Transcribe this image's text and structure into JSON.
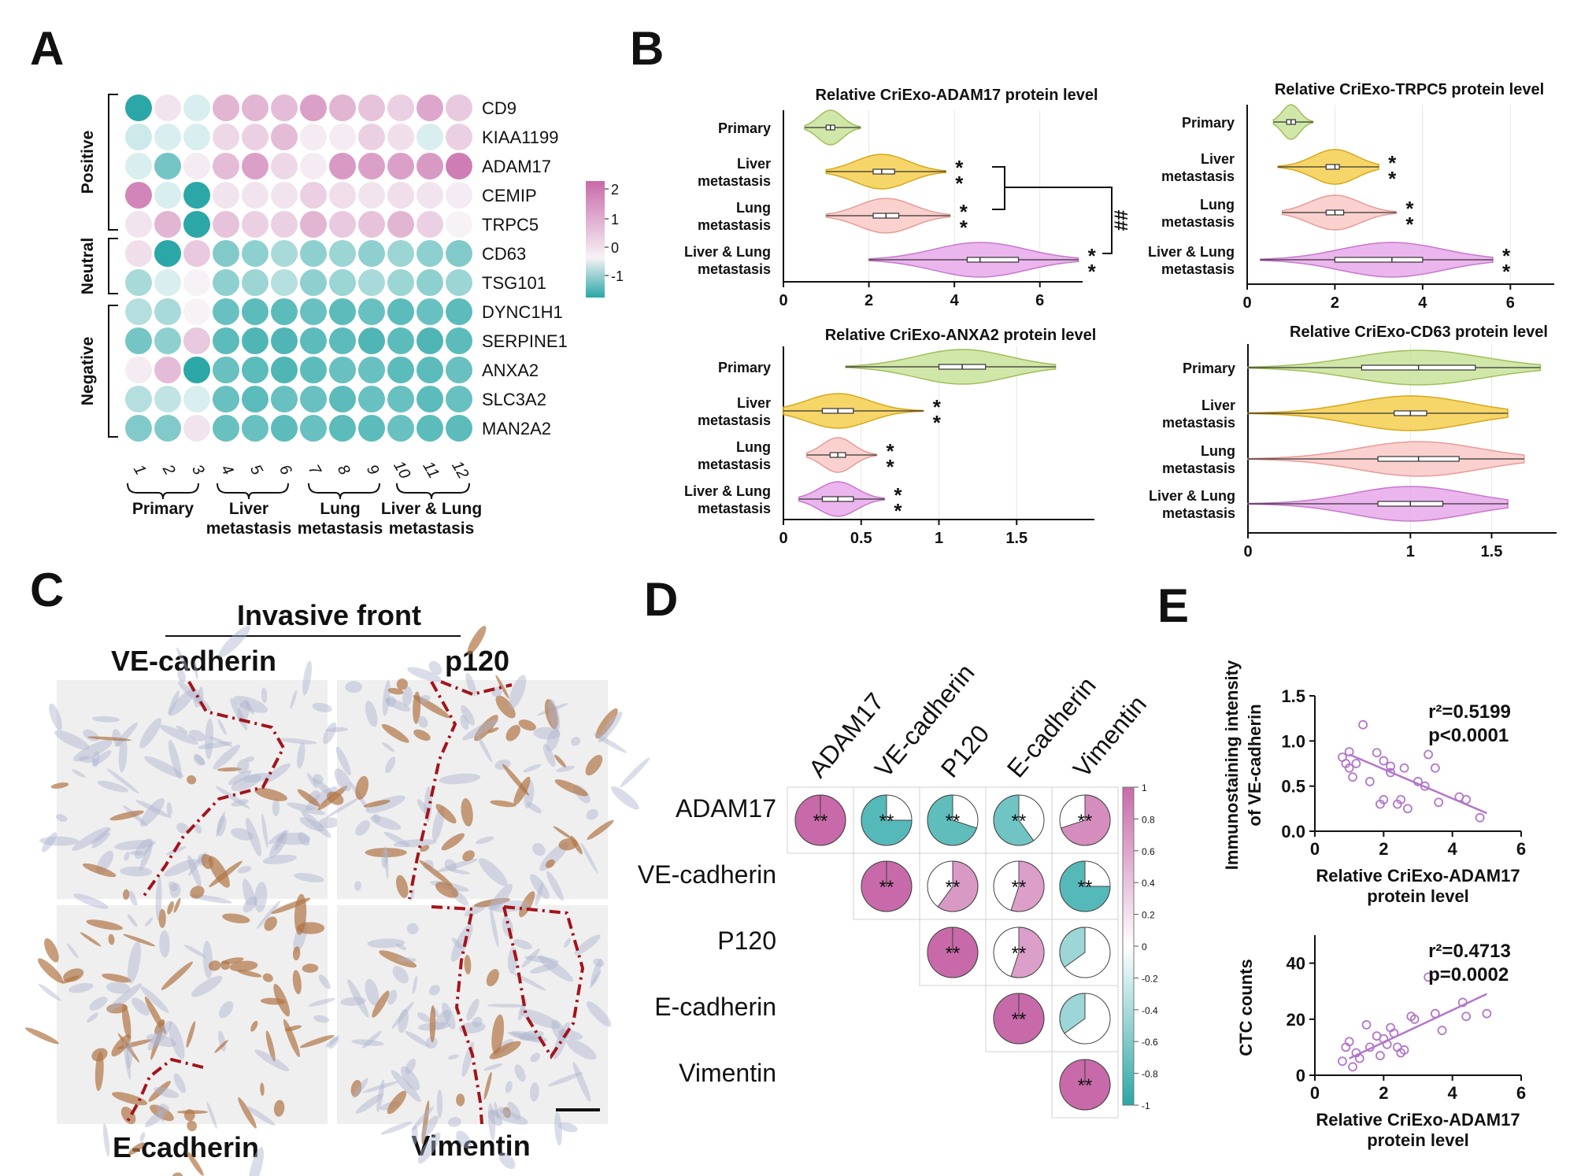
{
  "panels": {
    "a": "A",
    "b": "B",
    "c": "C",
    "d": "D",
    "e": "E"
  },
  "colors": {
    "pos": "#c86aa9",
    "neg": "#2aa7a6",
    "violin_primary": "#c9e39a",
    "violin_liver": "#f5cf4f",
    "violin_lung": "#f9c9c6",
    "violin_both": "#e8a8ea",
    "scatter": "#b377c9",
    "ihc_bg": "#efefef",
    "ihc_brown": "#b07546",
    "ihc_blue": "#aeb3cf",
    "boundary": "#a3141b"
  },
  "heatmap": {
    "genes": [
      "CD9",
      "KIAA1199",
      "ADAM17",
      "CEMIP",
      "TRPC5",
      "CD63",
      "TSG101",
      "DYNC1H1",
      "SERPINE1",
      "ANXA2",
      "SLC3A2",
      "MAN2A2"
    ],
    "samples": [
      "1",
      "2",
      "3",
      "4",
      "5",
      "6",
      "7",
      "8",
      "9",
      "10",
      "11",
      "12"
    ],
    "groups": [
      {
        "label": "Primary",
        "line2": ""
      },
      {
        "label": "Liver",
        "line2": "metastasis"
      },
      {
        "label": "Lung",
        "line2": "metastasis"
      },
      {
        "label": "Liver & Lung",
        "line2": "metastasis"
      }
    ],
    "row_groups": [
      "Positive",
      "Neutral",
      "Negative"
    ],
    "legend_ticks": [
      "2",
      "1",
      "0",
      "-1"
    ],
    "values": [
      [
        -2.0,
        0.2,
        -0.2,
        0.9,
        0.9,
        0.8,
        1.2,
        0.9,
        0.7,
        0.5,
        1.1,
        0.6
      ],
      [
        -0.3,
        -0.2,
        -0.2,
        0.4,
        0.5,
        0.8,
        0.1,
        0.1,
        0.5,
        0.3,
        -0.2,
        0.5
      ],
      [
        -0.2,
        -1.0,
        0.1,
        0.8,
        1.2,
        0.4,
        0.1,
        1.3,
        1.2,
        1.2,
        1.3,
        1.7
      ],
      [
        1.6,
        -0.2,
        -1.6,
        0.2,
        0.2,
        0.2,
        0.5,
        0.3,
        0.2,
        0.3,
        0.2,
        0.1
      ],
      [
        0.2,
        0.9,
        -1.8,
        0.7,
        0.5,
        0.5,
        0.9,
        0.6,
        0.7,
        0.9,
        0.5,
        0.0
      ],
      [
        0.3,
        -2.0,
        0.6,
        -0.9,
        -0.8,
        -0.6,
        -0.8,
        -0.7,
        -0.8,
        -0.7,
        -0.8,
        -0.9
      ],
      [
        -0.6,
        -0.2,
        0.0,
        -0.8,
        -0.7,
        -0.5,
        -0.8,
        -0.7,
        -0.6,
        -0.7,
        -0.8,
        -0.7
      ],
      [
        -0.5,
        -0.6,
        0.0,
        -1.1,
        -1.2,
        -1.2,
        -1.1,
        -1.2,
        -1.1,
        -1.2,
        -1.1,
        -1.2
      ],
      [
        -1.0,
        -0.8,
        0.6,
        -1.2,
        -1.3,
        -1.3,
        -1.2,
        -1.2,
        -1.3,
        -1.2,
        -1.3,
        -1.2
      ],
      [
        0.1,
        0.8,
        -1.9,
        -1.1,
        -1.2,
        -1.3,
        -1.2,
        -1.1,
        -1.1,
        -1.2,
        -1.2,
        -1.1
      ],
      [
        -0.5,
        -0.4,
        -0.2,
        -1.1,
        -1.2,
        -1.1,
        -1.1,
        -1.2,
        -1.1,
        -1.1,
        -1.2,
        -1.1
      ],
      [
        -0.9,
        -0.9,
        0.2,
        -1.1,
        -1.1,
        -1.2,
        -1.1,
        -1.2,
        -1.2,
        -1.1,
        -1.2,
        -1.2
      ]
    ]
  },
  "violins": [
    {
      "title": "Relative CriExo-ADAM17 protein level",
      "categories": [
        "Primary",
        "Liver\nmetastasis",
        "Lung\nmetastasis",
        "Liver & Lung\nmetastasis"
      ],
      "xlim": [
        0,
        7
      ],
      "xticks": [
        "0",
        "2",
        "4",
        "6"
      ],
      "groups": [
        {
          "min": 0.5,
          "q1": 1.0,
          "median": 1.1,
          "q3": 1.2,
          "max": 1.8,
          "sig": ""
        },
        {
          "min": 1.0,
          "q1": 2.1,
          "median": 2.3,
          "q3": 2.6,
          "max": 3.8,
          "sig": "**"
        },
        {
          "min": 1.0,
          "q1": 2.1,
          "median": 2.4,
          "q3": 2.7,
          "max": 3.9,
          "sig": "**"
        },
        {
          "min": 2.0,
          "q1": 4.3,
          "median": 4.6,
          "q3": 5.5,
          "max": 6.9,
          "sig": "**"
        }
      ],
      "bracket_label": "##"
    },
    {
      "title": "Relative CriExo-TRPC5 protein level",
      "categories": [
        "Primary",
        "Liver\nmetastasis",
        "Lung\nmetastasis",
        "Liver & Lung\nmetastasis"
      ],
      "xlim": [
        0,
        7
      ],
      "xticks": [
        "0",
        "2",
        "4",
        "6"
      ],
      "groups": [
        {
          "min": 0.6,
          "q1": 0.9,
          "median": 1.0,
          "q3": 1.1,
          "max": 1.5,
          "sig": ""
        },
        {
          "min": 0.7,
          "q1": 1.8,
          "median": 2.0,
          "q3": 2.1,
          "max": 3.0,
          "sig": "**"
        },
        {
          "min": 0.8,
          "q1": 1.8,
          "median": 2.0,
          "q3": 2.2,
          "max": 3.4,
          "sig": "**"
        },
        {
          "min": 0.3,
          "q1": 2.0,
          "median": 3.3,
          "q3": 4.0,
          "max": 5.6,
          "sig": "**"
        }
      ]
    },
    {
      "title": "Relative CriExo-ANXA2 protein level",
      "categories": [
        "Primary",
        "Liver\nmetastasis",
        "Lung\nmetastasis",
        "Liver & Lung\nmetastasis"
      ],
      "xlim": [
        0,
        2.0
      ],
      "xticks": [
        "0",
        "0.5",
        "1",
        "1.5"
      ],
      "groups": [
        {
          "min": 0.4,
          "q1": 1.0,
          "median": 1.15,
          "q3": 1.3,
          "max": 1.75,
          "sig": ""
        },
        {
          "min": 0.0,
          "q1": 0.25,
          "median": 0.35,
          "q3": 0.45,
          "max": 0.9,
          "sig": "**"
        },
        {
          "min": 0.15,
          "q1": 0.3,
          "median": 0.35,
          "q3": 0.4,
          "max": 0.6,
          "sig": "**"
        },
        {
          "min": 0.1,
          "q1": 0.25,
          "median": 0.35,
          "q3": 0.45,
          "max": 0.65,
          "sig": "**"
        }
      ]
    },
    {
      "title": "Relative CriExo-CD63 protein level",
      "categories": [
        "Primary",
        "Liver\nmetastasis",
        "Lung\nmetastasis",
        "Liver & Lung\nmetastasis"
      ],
      "xlim": [
        0,
        1.9
      ],
      "xticks": [
        "0",
        "1",
        "1.5"
      ],
      "tick_values": [
        0,
        1,
        1.5
      ],
      "groups": [
        {
          "min": 0.0,
          "q1": 0.7,
          "median": 1.05,
          "q3": 1.4,
          "max": 1.8,
          "sig": ""
        },
        {
          "min": 0.0,
          "q1": 0.9,
          "median": 1.0,
          "q3": 1.1,
          "max": 1.6,
          "sig": ""
        },
        {
          "min": 0.0,
          "q1": 0.8,
          "median": 1.05,
          "q3": 1.3,
          "max": 1.7,
          "sig": ""
        },
        {
          "min": 0.0,
          "q1": 0.8,
          "median": 1.0,
          "q3": 1.2,
          "max": 1.6,
          "sig": ""
        }
      ]
    }
  ],
  "ihc": {
    "header": "Invasive front",
    "stains": [
      "VE-cadherin",
      "p120",
      "E-cadherin",
      "Vimentin"
    ]
  },
  "corr": {
    "labels": [
      "ADAM17",
      "VE-cadherin",
      "P120",
      "E-cadherin",
      "Vimentin"
    ],
    "matrix": [
      [
        1,
        -0.75,
        -0.7,
        -0.6,
        0.7
      ],
      [
        null,
        1,
        0.6,
        0.55,
        -0.75
      ],
      [
        null,
        null,
        1,
        0.55,
        -0.35
      ],
      [
        null,
        null,
        null,
        1,
        -0.35
      ],
      [
        null,
        null,
        null,
        null,
        1
      ]
    ],
    "sig": [
      [
        "**",
        "**",
        "**",
        "**",
        "**"
      ],
      [
        "",
        "**",
        "**",
        "**",
        "**"
      ],
      [
        "",
        "",
        "**",
        "**",
        ""
      ],
      [
        "",
        "",
        "",
        "**",
        ""
      ],
      [
        "",
        "",
        "",
        "",
        "**"
      ]
    ],
    "legend_ticks": [
      "1",
      "0.8",
      "0.6",
      "0.4",
      "0.2",
      "0",
      "-0.2",
      "-0.4",
      "-0.6",
      "-0.8",
      "-1"
    ]
  },
  "scatter_top": {
    "ylabel_line1": "Immunostaining intensity",
    "ylabel_line2": "of VE-cadherin",
    "xlabel_line1": "Relative CriExo-ADAM17",
    "xlabel_line2": "protein level",
    "r2": "r²=0.5199",
    "p": "p<0.0001",
    "xticks": [
      "0",
      "2",
      "4",
      "6"
    ],
    "yticks": [
      "0.0",
      "0.5",
      "1.0",
      "1.5"
    ],
    "xlim": [
      0,
      6
    ],
    "ylim": [
      0,
      1.5
    ],
    "points": [
      [
        0.8,
        0.82
      ],
      [
        0.9,
        0.75
      ],
      [
        1.0,
        0.88
      ],
      [
        1.1,
        0.6
      ],
      [
        1.2,
        0.75
      ],
      [
        1.0,
        0.7
      ],
      [
        1.4,
        1.18
      ],
      [
        1.6,
        0.55
      ],
      [
        1.8,
        0.87
      ],
      [
        2.0,
        0.78
      ],
      [
        2.2,
        0.72
      ],
      [
        2.0,
        0.35
      ],
      [
        1.9,
        0.3
      ],
      [
        2.4,
        0.3
      ],
      [
        2.5,
        0.35
      ],
      [
        2.7,
        0.25
      ],
      [
        2.6,
        0.7
      ],
      [
        3.0,
        0.55
      ],
      [
        3.2,
        0.5
      ],
      [
        3.3,
        0.85
      ],
      [
        3.5,
        0.7
      ],
      [
        3.6,
        0.32
      ],
      [
        4.2,
        0.38
      ],
      [
        4.4,
        0.35
      ],
      [
        4.8,
        0.15
      ],
      [
        2.2,
        0.65
      ]
    ],
    "fit": [
      [
        1.0,
        0.85
      ],
      [
        5.0,
        0.2
      ]
    ]
  },
  "scatter_bottom": {
    "ylabel": "CTC counts",
    "xlabel_line1": "Relative CriExo-ADAM17",
    "xlabel_line2": "protein level",
    "r2": "r²=0.4713",
    "p": "p=0.0002",
    "xticks": [
      "0",
      "2",
      "4",
      "6"
    ],
    "yticks": [
      "0",
      "20",
      "40"
    ],
    "xlim": [
      0,
      6
    ],
    "ylim": [
      0,
      50
    ],
    "points": [
      [
        0.8,
        5
      ],
      [
        0.9,
        10
      ],
      [
        1.0,
        12
      ],
      [
        1.1,
        3
      ],
      [
        1.2,
        8
      ],
      [
        1.5,
        18
      ],
      [
        1.6,
        10
      ],
      [
        1.8,
        14
      ],
      [
        1.9,
        7
      ],
      [
        2.0,
        13
      ],
      [
        2.1,
        11
      ],
      [
        2.3,
        15
      ],
      [
        2.4,
        10
      ],
      [
        2.5,
        8
      ],
      [
        2.6,
        9
      ],
      [
        2.8,
        21
      ],
      [
        2.9,
        20
      ],
      [
        3.3,
        35
      ],
      [
        3.5,
        22
      ],
      [
        3.7,
        16
      ],
      [
        4.3,
        26
      ],
      [
        4.4,
        21
      ],
      [
        5.0,
        22
      ],
      [
        2.2,
        17
      ],
      [
        1.3,
        6
      ]
    ],
    "fit": [
      [
        1.0,
        6
      ],
      [
        5.0,
        29
      ]
    ]
  },
  "chart_data": [
    {
      "type": "heatmap",
      "panel": "A",
      "rows": [
        "CD9",
        "KIAA1199",
        "ADAM17",
        "CEMIP",
        "TRPC5",
        "CD63",
        "TSG101",
        "DYNC1H1",
        "SERPINE1",
        "ANXA2",
        "SLC3A2",
        "MAN2A2"
      ],
      "columns": [
        "1",
        "2",
        "3",
        "4",
        "5",
        "6",
        "7",
        "8",
        "9",
        "10",
        "11",
        "12"
      ],
      "range": [
        -1,
        2
      ]
    },
    {
      "type": "violin",
      "panel": "B"
    },
    {
      "type": "heatmap",
      "panel": "D",
      "range": [
        -1,
        1
      ]
    },
    {
      "type": "scatter",
      "panel": "E"
    }
  ]
}
